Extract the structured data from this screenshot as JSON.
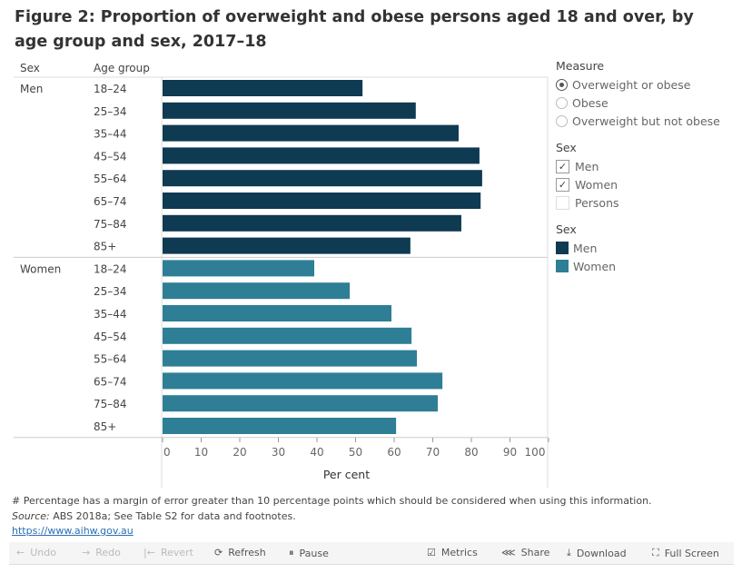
{
  "title": "Figure 2: Proportion of overweight and obese persons aged 18 and over, by age group and sex, 2017–18",
  "chart_data": {
    "type": "bar",
    "orientation": "horizontal",
    "xlabel": "Per cent",
    "xlim": [
      0,
      100
    ],
    "xticks": [
      "0",
      "10",
      "20",
      "30",
      "40",
      "50",
      "60",
      "70",
      "80",
      "90",
      "100"
    ],
    "row_headers": [
      "Sex",
      "Age group"
    ],
    "groups": [
      {
        "name": "Men",
        "color": "#0e3a52",
        "categories": [
          "18–24",
          "25–34",
          "35–44",
          "45–54",
          "55–64",
          "65–74",
          "75–84",
          "85+"
        ],
        "values": [
          51.8,
          65.6,
          76.7,
          82.1,
          82.8,
          82.4,
          77.4,
          64.2
        ]
      },
      {
        "name": "Women",
        "color": "#2e7e96",
        "categories": [
          "18–24",
          "25–34",
          "35–44",
          "45–54",
          "55–64",
          "65–74",
          "75–84",
          "85+"
        ],
        "values": [
          39.3,
          48.5,
          59.3,
          64.5,
          65.9,
          72.5,
          71.3,
          60.5
        ]
      }
    ]
  },
  "legend": {
    "measure_title": "Measure",
    "measure_options": [
      {
        "label": "Overweight or obese",
        "selected": true
      },
      {
        "label": "Obese",
        "selected": false
      },
      {
        "label": "Overweight but not obese",
        "selected": false
      }
    ],
    "sex_filter_title": "Sex",
    "sex_filter": [
      {
        "label": "Men",
        "checked": true
      },
      {
        "label": "Women",
        "checked": true
      },
      {
        "label": "Persons",
        "checked": false
      }
    ],
    "color_title": "Sex",
    "color_items": [
      {
        "label": "Men",
        "color": "#0e3a52"
      },
      {
        "label": "Women",
        "color": "#2e7e96"
      }
    ]
  },
  "footer": {
    "note": "# Percentage has a margin of error greater than 10 percentage points which should be considered when using this information.",
    "source_label": "Source:",
    "source_text": " ABS 2018a; See Table S2 for data and footnotes.",
    "link": "https://www.aihw.gov.au"
  },
  "toolbar": {
    "undo": "Undo",
    "redo": "Redo",
    "revert": "Revert",
    "refresh": "Refresh",
    "pause": "Pause",
    "metrics": "Metrics",
    "share": "Share",
    "download": "Download",
    "fullscreen": "Full Screen"
  }
}
